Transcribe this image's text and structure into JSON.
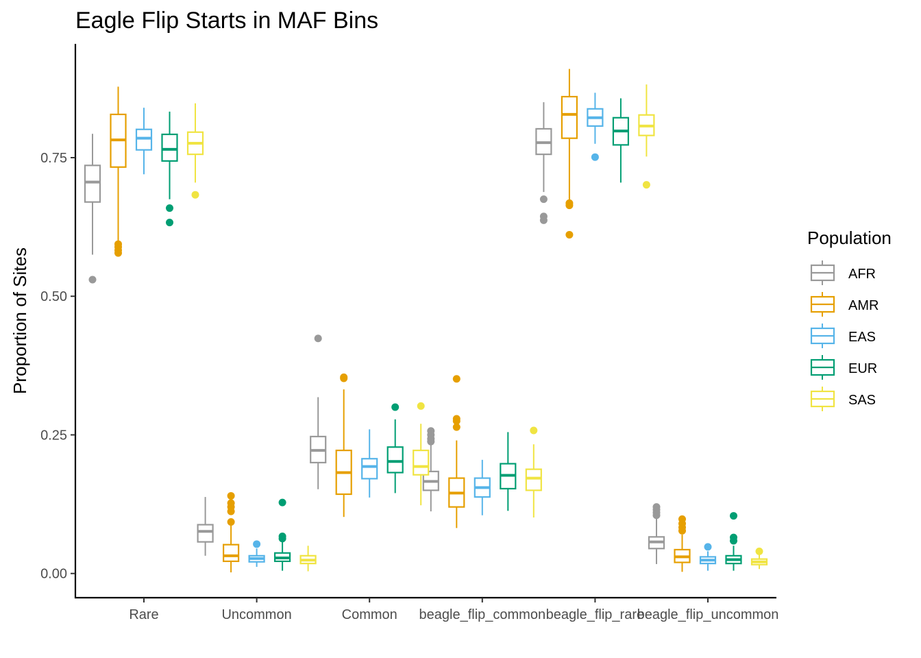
{
  "chart_data": {
    "type": "boxplot",
    "title": "Eagle Flip Starts in MAF Bins",
    "xlabel": "",
    "ylabel": "Proportion of Sites",
    "yticks": [
      "0.00",
      "0.25",
      "0.50",
      "0.75"
    ],
    "ytick_values": [
      0,
      0.25,
      0.5,
      0.75
    ],
    "categories": [
      "Rare",
      "Uncommon",
      "Common",
      "beagle_flip_common",
      "beagle_flip_rare",
      "beagle_flip_uncommon"
    ],
    "legend": {
      "title": "Population",
      "position": "right"
    },
    "grid": false,
    "series": [
      {
        "name": "AFR",
        "color": "#999999",
        "boxes": [
          {
            "low": 0.575,
            "q1": 0.67,
            "median": 0.706,
            "q3": 0.736,
            "high": 0.793,
            "outliers": [
              0.53
            ]
          },
          {
            "low": 0.032,
            "q1": 0.057,
            "median": 0.076,
            "q3": 0.088,
            "high": 0.138,
            "outliers": []
          },
          {
            "low": 0.152,
            "q1": 0.2,
            "median": 0.222,
            "q3": 0.247,
            "high": 0.318,
            "outliers": [
              0.424
            ]
          },
          {
            "low": 0.112,
            "q1": 0.15,
            "median": 0.166,
            "q3": 0.184,
            "high": 0.233,
            "outliers": [
              0.238,
              0.243,
              0.25,
              0.257
            ]
          },
          {
            "low": 0.688,
            "q1": 0.756,
            "median": 0.777,
            "q3": 0.802,
            "high": 0.85,
            "outliers": [
              0.637,
              0.644,
              0.675
            ]
          },
          {
            "low": 0.017,
            "q1": 0.045,
            "median": 0.057,
            "q3": 0.066,
            "high": 0.102,
            "outliers": [
              0.105,
              0.11,
              0.115,
              0.12
            ]
          }
        ]
      },
      {
        "name": "AMR",
        "color": "#E69F00",
        "boxes": [
          {
            "low": 0.6,
            "q1": 0.733,
            "median": 0.782,
            "q3": 0.828,
            "high": 0.878,
            "outliers": [
              0.578,
              0.583,
              0.589,
              0.594
            ]
          },
          {
            "low": 0.002,
            "q1": 0.022,
            "median": 0.032,
            "q3": 0.052,
            "high": 0.09,
            "outliers": [
              0.093,
              0.112,
              0.12,
              0.127,
              0.14
            ]
          },
          {
            "low": 0.102,
            "q1": 0.143,
            "median": 0.182,
            "q3": 0.222,
            "high": 0.332,
            "outliers": [
              0.352,
              0.354
            ]
          },
          {
            "low": 0.082,
            "q1": 0.12,
            "median": 0.145,
            "q3": 0.172,
            "high": 0.24,
            "outliers": [
              0.264,
              0.275,
              0.279,
              0.351
            ]
          },
          {
            "low": 0.67,
            "q1": 0.785,
            "median": 0.828,
            "q3": 0.86,
            "high": 0.91,
            "outliers": [
              0.611,
              0.664,
              0.668
            ]
          },
          {
            "low": 0.003,
            "q1": 0.02,
            "median": 0.03,
            "q3": 0.043,
            "high": 0.07,
            "outliers": [
              0.077,
              0.083,
              0.09,
              0.098
            ]
          }
        ]
      },
      {
        "name": "EAS",
        "color": "#56B4E9",
        "boxes": [
          {
            "low": 0.72,
            "q1": 0.764,
            "median": 0.785,
            "q3": 0.801,
            "high": 0.84,
            "outliers": []
          },
          {
            "low": 0.012,
            "q1": 0.021,
            "median": 0.027,
            "q3": 0.032,
            "high": 0.045,
            "outliers": [
              0.053
            ]
          },
          {
            "low": 0.137,
            "q1": 0.171,
            "median": 0.193,
            "q3": 0.207,
            "high": 0.26,
            "outliers": []
          },
          {
            "low": 0.105,
            "q1": 0.138,
            "median": 0.155,
            "q3": 0.172,
            "high": 0.205,
            "outliers": []
          },
          {
            "low": 0.775,
            "q1": 0.807,
            "median": 0.822,
            "q3": 0.838,
            "high": 0.867,
            "outliers": [
              0.751
            ]
          },
          {
            "low": 0.005,
            "q1": 0.018,
            "median": 0.024,
            "q3": 0.03,
            "high": 0.04,
            "outliers": [
              0.048
            ]
          }
        ]
      },
      {
        "name": "EUR",
        "color": "#009E73",
        "boxes": [
          {
            "low": 0.675,
            "q1": 0.744,
            "median": 0.765,
            "q3": 0.792,
            "high": 0.833,
            "outliers": [
              0.633,
              0.659
            ]
          },
          {
            "low": 0.005,
            "q1": 0.022,
            "median": 0.028,
            "q3": 0.037,
            "high": 0.057,
            "outliers": [
              0.063,
              0.067,
              0.128
            ]
          },
          {
            "low": 0.145,
            "q1": 0.182,
            "median": 0.202,
            "q3": 0.228,
            "high": 0.278,
            "outliers": [
              0.3
            ]
          },
          {
            "low": 0.113,
            "q1": 0.153,
            "median": 0.177,
            "q3": 0.198,
            "high": 0.255,
            "outliers": []
          },
          {
            "low": 0.705,
            "q1": 0.773,
            "median": 0.798,
            "q3": 0.822,
            "high": 0.857,
            "outliers": []
          },
          {
            "low": 0.005,
            "q1": 0.018,
            "median": 0.025,
            "q3": 0.032,
            "high": 0.05,
            "outliers": [
              0.059,
              0.065,
              0.104
            ]
          }
        ]
      },
      {
        "name": "SAS",
        "color": "#F0E442",
        "boxes": [
          {
            "low": 0.705,
            "q1": 0.756,
            "median": 0.776,
            "q3": 0.796,
            "high": 0.848,
            "outliers": [
              0.683
            ]
          },
          {
            "low": 0.004,
            "q1": 0.018,
            "median": 0.024,
            "q3": 0.032,
            "high": 0.05,
            "outliers": []
          },
          {
            "low": 0.123,
            "q1": 0.178,
            "median": 0.193,
            "q3": 0.222,
            "high": 0.27,
            "outliers": [
              0.302
            ]
          },
          {
            "low": 0.101,
            "q1": 0.15,
            "median": 0.172,
            "q3": 0.188,
            "high": 0.233,
            "outliers": [
              0.258
            ]
          },
          {
            "low": 0.752,
            "q1": 0.79,
            "median": 0.807,
            "q3": 0.827,
            "high": 0.882,
            "outliers": [
              0.701
            ]
          },
          {
            "low": 0.008,
            "q1": 0.016,
            "median": 0.021,
            "q3": 0.026,
            "high": 0.034,
            "outliers": [
              0.04
            ]
          }
        ]
      }
    ]
  }
}
